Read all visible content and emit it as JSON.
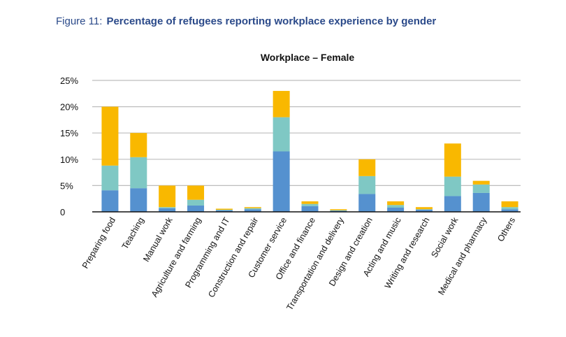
{
  "figure": {
    "number": "Figure 11:",
    "title": "Percentage of refugees reporting workplace experience by gender"
  },
  "chart_data": {
    "type": "bar",
    "stacked": true,
    "title": "Workplace – Female",
    "xlabel": "",
    "ylabel": "",
    "ylim": [
      0,
      25
    ],
    "yticks": [
      0,
      5,
      10,
      15,
      20,
      25
    ],
    "ytick_labels": [
      "0",
      "5%",
      "10%",
      "15%",
      "20%",
      "25%"
    ],
    "grid": true,
    "legend": "none",
    "categories": [
      "Preparing food",
      "Teaching",
      "Manual work",
      "Agriculture and farming",
      "Programming and IT",
      "Construction and repair",
      "Customer service",
      "Office and finance",
      "Transportation and delivery",
      "Design and creation",
      "Acting and music",
      "Writing and research",
      "Social work",
      "Medical and pharmacy",
      "Others"
    ],
    "series": [
      {
        "name": "segment-1",
        "color": "#5591cf",
        "values": [
          4.1,
          4.5,
          0.7,
          1.2,
          0.3,
          0.5,
          11.5,
          1.1,
          0.2,
          3.4,
          0.8,
          0.4,
          3.0,
          3.6,
          0.5
        ]
      },
      {
        "name": "segment-2",
        "color": "#7fc8c4",
        "values": [
          4.7,
          5.9,
          0.2,
          1.1,
          0.1,
          0.2,
          6.5,
          0.4,
          0.1,
          3.4,
          0.5,
          0.1,
          3.7,
          1.6,
          0.4
        ]
      },
      {
        "name": "segment-3",
        "color": "#f9b800",
        "values": [
          11.2,
          4.6,
          4.1,
          2.7,
          0.2,
          0.2,
          5.0,
          0.5,
          0.2,
          3.2,
          0.7,
          0.4,
          6.3,
          0.7,
          1.1
        ]
      }
    ]
  }
}
